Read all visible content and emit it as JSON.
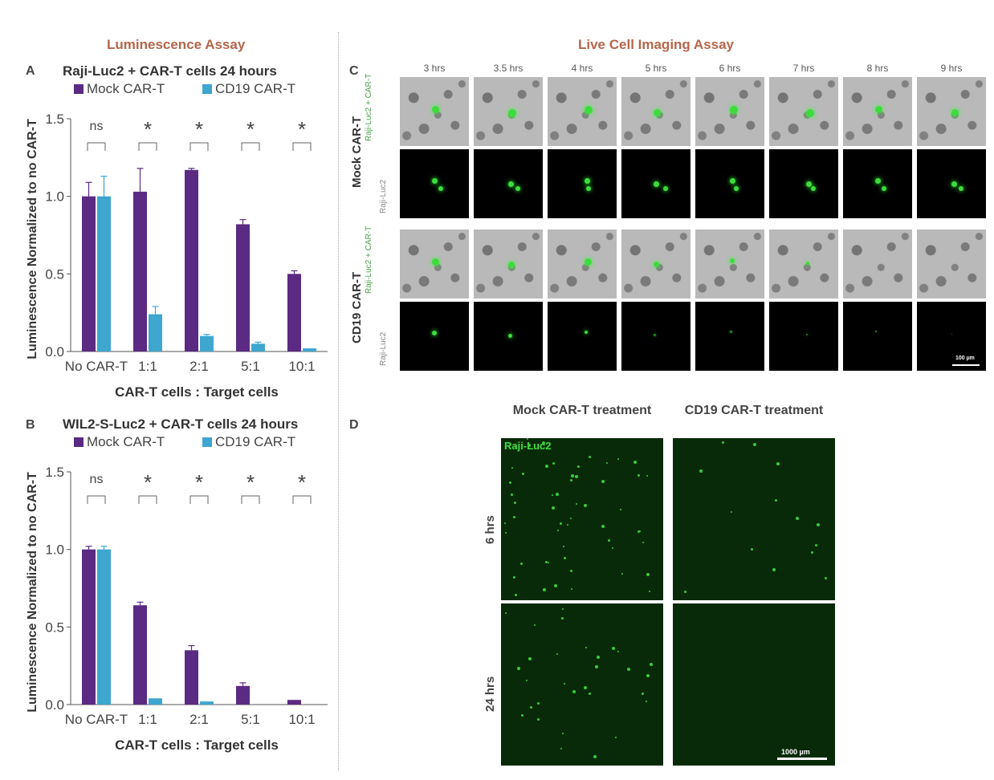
{
  "sections": {
    "luminescence_title": "Luminescence Assay",
    "imaging_title": "Live Cell Imaging Assay"
  },
  "panel_letters": {
    "a": "A",
    "b": "B",
    "c": "C",
    "d": "D"
  },
  "colors": {
    "mock": "#5b2a82",
    "cd19": "#3ea6cf",
    "section_title": "#b5654a"
  },
  "chart_data": [
    {
      "type": "bar",
      "title": "Raji-Luc2 + CAR-T cells 24 hours",
      "xlabel": "CAR-T cells : Target cells",
      "ylabel": "Luminescence Normalized to no CAR-T",
      "categories": [
        "No CAR-T",
        "1:1",
        "2:1",
        "5:1",
        "10:1"
      ],
      "ylim": [
        0,
        1.5
      ],
      "yticks": [
        "0.0",
        "0.5",
        "1.0",
        "1.5"
      ],
      "legend_position": "top",
      "significance": [
        "ns",
        "*",
        "*",
        "*",
        "*"
      ],
      "series": [
        {
          "name": "Mock CAR-T",
          "values": [
            1.0,
            1.03,
            1.17,
            0.82,
            0.5
          ],
          "errors": [
            0.09,
            0.15,
            0.01,
            0.03,
            0.02
          ]
        },
        {
          "name": "CD19 CAR-T",
          "values": [
            1.0,
            0.24,
            0.1,
            0.05,
            0.02
          ],
          "errors": [
            0.13,
            0.05,
            0.01,
            0.01,
            0.0
          ]
        }
      ]
    },
    {
      "type": "bar",
      "title": "WIL2-S-Luc2 + CAR-T cells 24 hours",
      "xlabel": "CAR-T cells : Target cells",
      "ylabel": "Luminescence Normalized to no CAR-T",
      "categories": [
        "No CAR-T",
        "1:1",
        "2:1",
        "5:1",
        "10:1"
      ],
      "ylim": [
        0,
        1.5
      ],
      "yticks": [
        "0.0",
        "0.5",
        "1.0",
        "1.5"
      ],
      "legend_position": "top",
      "significance": [
        "ns",
        "*",
        "*",
        "*",
        "*"
      ],
      "series": [
        {
          "name": "Mock CAR-T",
          "values": [
            1.0,
            0.64,
            0.35,
            0.12,
            0.03
          ],
          "errors": [
            0.02,
            0.02,
            0.03,
            0.02,
            0.0
          ]
        },
        {
          "name": "CD19 CAR-T",
          "values": [
            1.0,
            0.04,
            0.02,
            0.0,
            0.0
          ],
          "errors": [
            0.02,
            0.0,
            0.0,
            0.0,
            0.0
          ]
        }
      ]
    }
  ],
  "panel_c": {
    "times": [
      "3 hrs",
      "3.5 hrs",
      "4 hrs",
      "5 hrs",
      "6 hrs",
      "7 hrs",
      "8 hrs",
      "9 hrs"
    ],
    "groups": [
      {
        "label": "Mock CAR-T",
        "row_labels": [
          "Raji-Luc2 + CAR-T",
          "Raji-Luc2"
        ]
      },
      {
        "label": "CD19 CAR-T",
        "row_labels": [
          "Raji-Luc2 + CAR-T",
          "Raji-Luc2"
        ]
      }
    ],
    "scalebar_label": "100 µm"
  },
  "panel_d": {
    "columns": [
      "Mock CAR-T treatment",
      "CD19 CAR-T treatment"
    ],
    "rows": [
      "6 hrs",
      "24 hrs"
    ],
    "channel_label": "Raji-Luc2",
    "scalebar_label": "1000 µm"
  }
}
